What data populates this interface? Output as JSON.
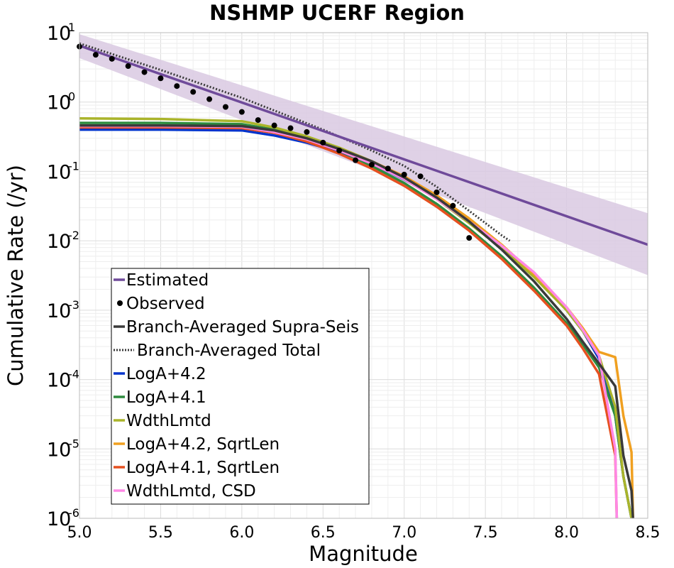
{
  "chart_data": {
    "type": "line",
    "title": "NSHMP UCERF Region",
    "xlabel": "Magnitude",
    "ylabel": "Cumulative Rate (/yr)",
    "xlim": [
      5.0,
      8.5
    ],
    "ylim": [
      1e-06,
      10
    ],
    "yscale": "log",
    "grid": true,
    "legend_position": "lower-left",
    "x_ticks": [
      "5.0",
      "5.5",
      "6.0",
      "6.5",
      "7.0",
      "7.5",
      "8.0",
      "8.5"
    ],
    "y_ticks": [
      {
        "base": "10",
        "exp": "1"
      },
      {
        "base": "10",
        "exp": "0"
      },
      {
        "base": "10",
        "exp": "-1"
      },
      {
        "base": "10",
        "exp": "-2"
      },
      {
        "base": "10",
        "exp": "-3"
      },
      {
        "base": "10",
        "exp": "-4"
      },
      {
        "base": "10",
        "exp": "-5"
      },
      {
        "base": "10",
        "exp": "-6"
      }
    ],
    "estimated_band": {
      "color": "#d9c9e2",
      "x": [
        5.0,
        8.5
      ],
      "upper": [
        9.5,
        0.025
      ],
      "lower": [
        4.3,
        0.0032
      ]
    },
    "series": [
      {
        "name": "Estimated",
        "style": "solid",
        "color": "#6f4a9a",
        "x": [
          5.0,
          8.5
        ],
        "y": [
          6.5,
          0.0088
        ]
      },
      {
        "name": "Observed",
        "style": "points",
        "color": "#000000",
        "x": [
          5.0,
          5.1,
          5.2,
          5.3,
          5.4,
          5.5,
          5.6,
          5.7,
          5.8,
          5.9,
          6.0,
          6.1,
          6.2,
          6.3,
          6.4,
          6.5,
          6.6,
          6.7,
          6.8,
          6.9,
          7.0,
          7.1,
          7.2,
          7.3,
          7.4
        ],
        "y": [
          6.3,
          4.8,
          4.2,
          3.3,
          2.7,
          2.2,
          1.7,
          1.4,
          1.1,
          0.85,
          0.72,
          0.55,
          0.46,
          0.42,
          0.37,
          0.26,
          0.2,
          0.145,
          0.125,
          0.11,
          0.09,
          0.085,
          0.05,
          0.032,
          0.011
        ]
      },
      {
        "name": "Branch-Averaged Supra-Seis",
        "style": "solid",
        "color": "#3a3a3a",
        "x": [
          5.0,
          5.5,
          6.0,
          6.2,
          6.4,
          6.6,
          6.8,
          7.0,
          7.2,
          7.4,
          7.6,
          7.8,
          8.0,
          8.1,
          8.2,
          8.3,
          8.35,
          8.4,
          8.41
        ],
        "y": [
          0.46,
          0.46,
          0.45,
          0.39,
          0.3,
          0.21,
          0.14,
          0.082,
          0.042,
          0.019,
          0.0075,
          0.0026,
          0.00075,
          0.00035,
          0.00017,
          8e-05,
          8e-06,
          2.5e-06,
          9e-07
        ]
      },
      {
        "name": "Branch-Averaged Total",
        "style": "dotted",
        "color": "#3a3a3a",
        "x": [
          5.0,
          5.5,
          6.0,
          6.5,
          6.8,
          7.0,
          7.2,
          7.4,
          7.5,
          7.6,
          7.65
        ],
        "y": [
          7.0,
          2.9,
          1.15,
          0.4,
          0.2,
          0.12,
          0.06,
          0.027,
          0.018,
          0.012,
          0.01
        ]
      },
      {
        "name": "LogA+4.2",
        "style": "solid",
        "color": "#0033cc",
        "x": [
          5.0,
          5.5,
          6.0,
          6.2,
          6.4,
          6.6,
          6.8,
          7.0,
          7.2,
          7.4,
          7.6,
          7.8,
          8.0,
          8.1,
          8.2,
          8.3,
          8.35,
          8.4,
          8.41
        ],
        "y": [
          0.4,
          0.4,
          0.39,
          0.33,
          0.26,
          0.19,
          0.13,
          0.077,
          0.041,
          0.02,
          0.0085,
          0.0033,
          0.001,
          0.0005,
          0.0002,
          3e-05,
          4e-06,
          1e-06,
          9e-07
        ]
      },
      {
        "name": "LogA+4.1",
        "style": "solid",
        "color": "#2e8b3e",
        "x": [
          5.0,
          5.5,
          6.0,
          6.2,
          6.4,
          6.6,
          6.8,
          7.0,
          7.2,
          7.4,
          7.6,
          7.8,
          8.0,
          8.1,
          8.2,
          8.3,
          8.35,
          8.4,
          8.41
        ],
        "y": [
          0.5,
          0.5,
          0.48,
          0.4,
          0.3,
          0.2,
          0.12,
          0.068,
          0.034,
          0.015,
          0.006,
          0.0021,
          0.00065,
          0.00032,
          0.00015,
          3e-05,
          4e-06,
          1e-06,
          9e-07
        ]
      },
      {
        "name": "WdthLmtd",
        "style": "solid",
        "color": "#aab42a",
        "x": [
          5.0,
          5.5,
          6.0,
          6.2,
          6.4,
          6.6,
          6.8,
          7.0,
          7.2,
          7.4,
          7.6,
          7.8,
          8.0,
          8.1,
          8.2,
          8.3,
          8.35,
          8.4,
          8.41
        ],
        "y": [
          0.58,
          0.57,
          0.53,
          0.43,
          0.32,
          0.22,
          0.14,
          0.078,
          0.04,
          0.018,
          0.0078,
          0.003,
          0.001,
          0.0005,
          0.00022,
          4e-05,
          4e-06,
          1e-06,
          9e-07
        ]
      },
      {
        "name": "LogA+4.2, SqrtLen",
        "style": "solid",
        "color": "#f0a020",
        "x": [
          5.0,
          5.5,
          6.0,
          6.2,
          6.4,
          6.6,
          6.8,
          7.0,
          7.2,
          7.4,
          7.6,
          7.8,
          8.0,
          8.1,
          8.2,
          8.3,
          8.35,
          8.4,
          8.41
        ],
        "y": [
          0.44,
          0.44,
          0.43,
          0.37,
          0.29,
          0.21,
          0.14,
          0.085,
          0.045,
          0.021,
          0.0088,
          0.0033,
          0.0011,
          0.00055,
          0.00025,
          0.00021,
          3e-05,
          9e-06,
          9e-07
        ]
      },
      {
        "name": "LogA+4.1, SqrtLen",
        "style": "solid",
        "color": "#e65020",
        "x": [
          5.0,
          5.5,
          6.0,
          6.2,
          6.4,
          6.6,
          6.8,
          7.0,
          7.2,
          7.4,
          7.6,
          7.8,
          8.0,
          8.1,
          8.2,
          8.3,
          8.31
        ],
        "y": [
          0.43,
          0.43,
          0.42,
          0.36,
          0.27,
          0.18,
          0.11,
          0.062,
          0.031,
          0.014,
          0.0055,
          0.0019,
          0.0006,
          0.00028,
          0.00012,
          8e-06,
          9e-07
        ]
      },
      {
        "name": "WdthLmtd, CSD",
        "style": "solid",
        "color": "#ff88e6",
        "x": [
          5.0,
          5.5,
          6.0,
          6.2,
          6.4,
          6.6,
          6.8,
          7.0,
          7.2,
          7.4,
          7.6,
          7.8,
          8.0,
          8.1,
          8.2,
          8.3,
          8.31
        ],
        "y": [
          0.45,
          0.45,
          0.44,
          0.37,
          0.29,
          0.2,
          0.13,
          0.078,
          0.04,
          0.019,
          0.0085,
          0.0035,
          0.0011,
          0.00052,
          0.00022,
          1e-05,
          9e-07
        ]
      }
    ]
  }
}
